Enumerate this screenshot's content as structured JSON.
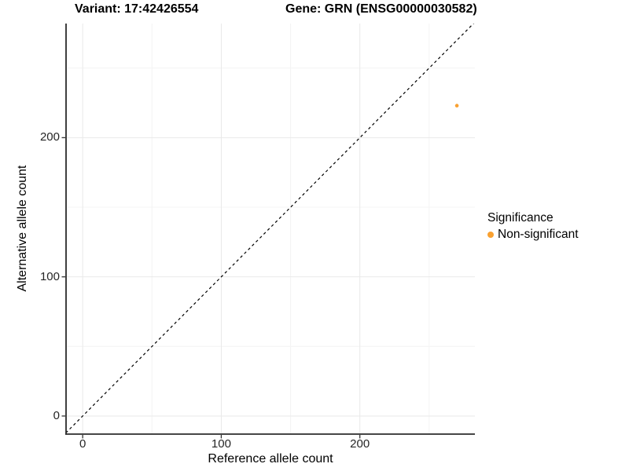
{
  "titles": {
    "variant": "Variant: 17:42426554",
    "gene": "Gene: GRN (ENSG00000030582)"
  },
  "axes": {
    "x_label": "Reference allele count",
    "y_label": "Alternative allele count"
  },
  "legend": {
    "title": "Significance",
    "items": [
      {
        "label": "Non-significant",
        "color": "#F9A131"
      }
    ]
  },
  "colors": {
    "background": "#ffffff",
    "axis_line": "#2b2b2b",
    "tick_mark": "#333333",
    "grid_major": "#e9e9e9",
    "grid_minor": "#f4f4f4",
    "reference_line": "#000000",
    "point": "#F9A131"
  },
  "chart_data": {
    "type": "scatter",
    "title": "Variant: 17:42426554 | Gene: GRN (ENSG00000030582)",
    "xlabel": "Reference allele count",
    "ylabel": "Alternative allele count",
    "xlim": [
      -12,
      283
    ],
    "ylim": [
      -13,
      282
    ],
    "xticks": [
      0,
      100,
      200
    ],
    "yticks": [
      0,
      100,
      200
    ],
    "xticks_minor": [
      50,
      150,
      250
    ],
    "yticks_minor": [
      50,
      150,
      250
    ],
    "grid": true,
    "legend_position": "right",
    "reference_line": {
      "type": "identity",
      "slope": 1,
      "intercept": 0,
      "style": "dashed"
    },
    "series": [
      {
        "name": "Non-significant",
        "color": "#F9A131",
        "points": [
          {
            "x": 270,
            "y": 223
          }
        ]
      }
    ]
  }
}
